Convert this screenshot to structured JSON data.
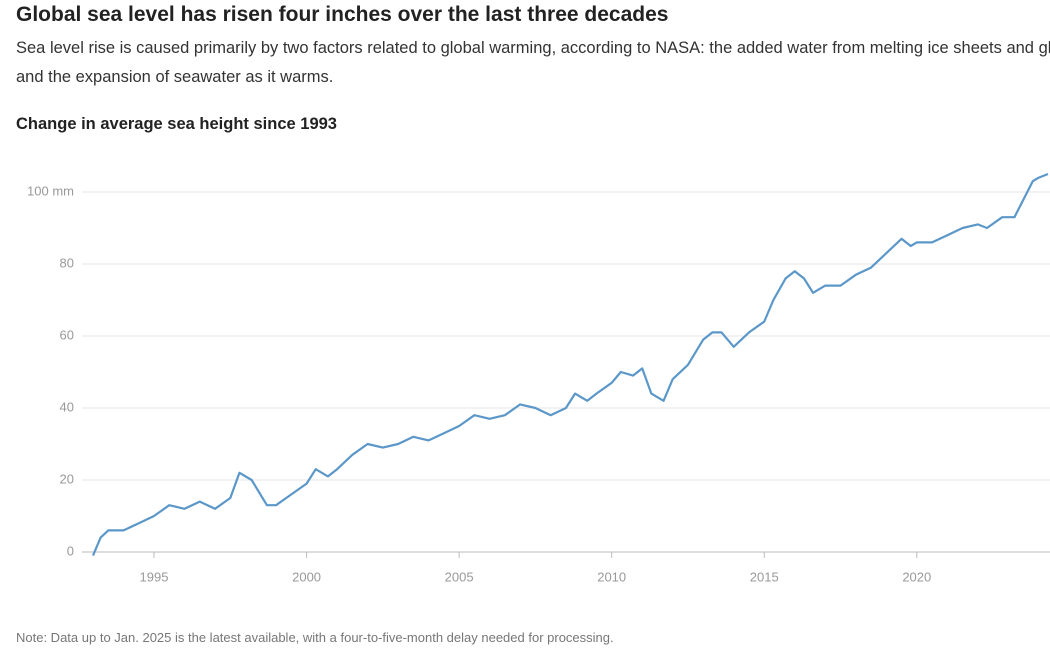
{
  "title": "Global sea level has risen four inches over the last three decades",
  "subtitle": "Sea level rise is caused primarily by two factors related to global warming, according to NASA: the added water from melting ice sheets and glaciers, and the expansion of seawater as it warms.",
  "note": "Note: Data up to Jan. 2025 is the latest available, with a four-to-five-month delay needed for processing.",
  "chart_data": {
    "type": "line",
    "title": "Change in average sea height since 1993",
    "x": [
      1993.0,
      1993.25,
      1993.5,
      1994.0,
      1994.5,
      1995.0,
      1995.5,
      1996.0,
      1996.5,
      1997.0,
      1997.5,
      1997.8,
      1998.2,
      1998.7,
      1999.0,
      1999.5,
      2000.0,
      2000.3,
      2000.7,
      2001.0,
      2001.5,
      2002.0,
      2002.5,
      2003.0,
      2003.5,
      2004.0,
      2004.5,
      2005.0,
      2005.5,
      2006.0,
      2006.5,
      2007.0,
      2007.5,
      2008.0,
      2008.5,
      2008.8,
      2009.2,
      2009.5,
      2010.0,
      2010.3,
      2010.7,
      2011.0,
      2011.3,
      2011.7,
      2012.0,
      2012.5,
      2013.0,
      2013.3,
      2013.6,
      2014.0,
      2014.5,
      2015.0,
      2015.3,
      2015.7,
      2016.0,
      2016.3,
      2016.6,
      2017.0,
      2017.5,
      2018.0,
      2018.5,
      2019.0,
      2019.5,
      2019.8,
      2020.0,
      2020.5,
      2021.0,
      2021.5,
      2022.0,
      2022.3,
      2022.8,
      2023.2,
      2023.5,
      2023.8,
      2024.0,
      2024.3
    ],
    "series": [
      {
        "name": "Change in average sea height",
        "color": "#5b97c8",
        "values": [
          -1,
          4,
          6,
          6,
          8,
          10,
          13,
          12,
          14,
          12,
          15,
          22,
          20,
          13,
          13,
          16,
          19,
          23,
          21,
          23,
          27,
          30,
          29,
          30,
          32,
          31,
          33,
          35,
          38,
          37,
          38,
          41,
          40,
          38,
          40,
          44,
          42,
          44,
          47,
          50,
          49,
          51,
          44,
          42,
          48,
          52,
          59,
          61,
          61,
          57,
          61,
          64,
          70,
          76,
          78,
          76,
          72,
          74,
          74,
          77,
          79,
          83,
          87,
          85,
          86,
          86,
          88,
          90,
          91,
          90,
          93,
          93,
          98,
          103,
          104,
          105
        ]
      }
    ],
    "xlim": [
      1993,
      2024.3
    ],
    "xticks": [
      1995,
      2000,
      2005,
      2010,
      2015,
      2020
    ],
    "ylim": [
      0,
      105
    ],
    "yticks": [
      0,
      20,
      40,
      60,
      80,
      {
        "value": 100,
        "label": "100 mm"
      }
    ],
    "grid": true
  }
}
